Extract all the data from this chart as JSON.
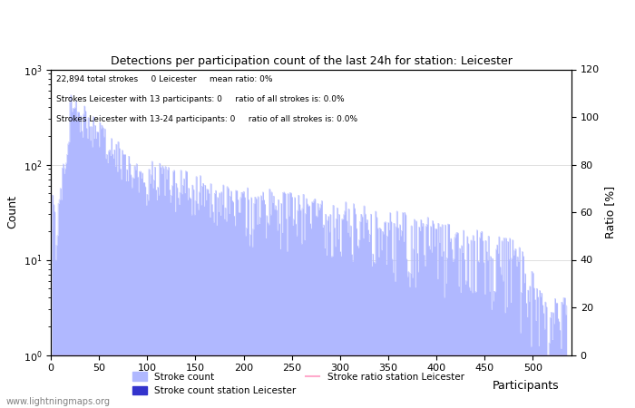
{
  "title": "Detections per participation count of the last 24h for station: Leicester",
  "xlabel": "Participants",
  "ylabel_left": "Count",
  "ylabel_right": "Ratio [%]",
  "annotation_lines": [
    "22,894 total strokes     0 Leicester     mean ratio: 0%",
    "Strokes Leicester with 13 participants: 0     ratio of all strokes is: 0.0%",
    "Strokes Leicester with 13-24 participants: 0     ratio of all strokes is: 0.0%"
  ],
  "bar_color": "#b0b8ff",
  "bar_color_station": "#3333cc",
  "ratio_line_color": "#ffaacc",
  "legend_labels": [
    "Stroke count",
    "Stroke count station Leicester",
    "Stroke ratio station Leicester"
  ],
  "watermark": "www.lightningmaps.org",
  "x_max": 535,
  "y_log_min": 1,
  "y_log_max": 1000,
  "ratio_y_max": 120,
  "ratio_ticks": [
    0,
    20,
    40,
    60,
    80,
    100,
    120
  ],
  "x_ticks": [
    0,
    50,
    100,
    150,
    200,
    250,
    300,
    350,
    400,
    450,
    500
  ]
}
